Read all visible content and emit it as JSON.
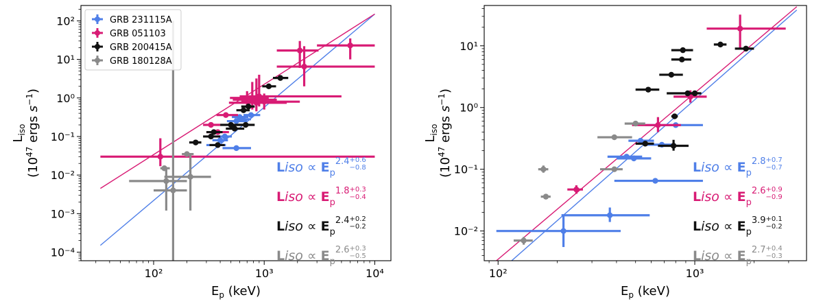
{
  "chart_data": [
    {
      "type": "scatter",
      "xlabel": "E_p (keV)",
      "ylabel_line1": "L_iso",
      "ylabel_line2": "(10^47 ergs s^-1)",
      "xscale": "log",
      "yscale": "log",
      "xlim": [
        22,
        14000
      ],
      "ylim": [
        6e-05,
        250
      ],
      "xticks": [
        100,
        1000,
        10000
      ],
      "xtick_labels": [
        "10²",
        "10³",
        "10⁴"
      ],
      "yticks": [
        0.0001,
        0.001,
        0.01,
        0.1,
        1,
        10,
        100
      ],
      "ytick_labels": [
        "10⁻⁴",
        "10⁻³",
        "10⁻²",
        "10⁻¹",
        "10⁰",
        "10¹",
        "10²"
      ],
      "legend_position": "top-left",
      "fit_lines": [
        {
          "series": "GRB 231115A",
          "x": [
            33,
            10000
          ],
          "y": [
            0.00015,
            150
          ]
        },
        {
          "series": "GRB 051103",
          "x": [
            33,
            10000
          ],
          "y": [
            0.0045,
            150
          ]
        }
      ],
      "series": [
        {
          "name": "GRB 231115A",
          "color": "#4f7fe8",
          "points": [
            {
              "x": 380,
              "y": 0.06,
              "xlo": 300,
              "xhi": 450
            },
            {
              "x": 400,
              "y": 0.08,
              "xlo": 340,
              "xhi": 470
            },
            {
              "x": 440,
              "y": 0.1,
              "xlo": 380,
              "xhi": 510
            },
            {
              "x": 560,
              "y": 0.05,
              "xlo": 420,
              "xhi": 760
            },
            {
              "x": 560,
              "y": 0.25,
              "xlo": 460,
              "xhi": 700
            },
            {
              "x": 600,
              "y": 0.32,
              "xlo": 510,
              "xhi": 720
            },
            {
              "x": 640,
              "y": 0.28,
              "xlo": 540,
              "xhi": 760
            },
            {
              "x": 760,
              "y": 0.36,
              "xlo": 650,
              "xhi": 920
            }
          ]
        },
        {
          "name": "GRB 051103",
          "color": "#d81b74",
          "points": [
            {
              "x": 115,
              "y": 0.03,
              "xlo": 33,
              "xhi": 10000,
              "ylo": 0.017,
              "yhi": 0.09
            },
            {
              "x": 330,
              "y": 0.2,
              "xlo": 280,
              "xhi": 400
            },
            {
              "x": 380,
              "y": 0.13,
              "xlo": 300,
              "xhi": 480
            },
            {
              "x": 450,
              "y": 0.36,
              "xlo": 370,
              "xhi": 580
            },
            {
              "x": 700,
              "y": 1.0,
              "xlo": 490,
              "xhi": 1100,
              "ylo": 0.6,
              "yhi": 1.5
            },
            {
              "x": 780,
              "y": 0.9,
              "xlo": 520,
              "xhi": 1300,
              "ylo": 0.5,
              "yhi": 2.6
            },
            {
              "x": 850,
              "y": 0.75,
              "xlo": 480,
              "xhi": 1600,
              "ylo": 0.45,
              "yhi": 3.2
            },
            {
              "x": 900,
              "y": 1.1,
              "xlo": 600,
              "xhi": 5000,
              "ylo": 0.6,
              "yhi": 4.0
            },
            {
              "x": 1000,
              "y": 0.8,
              "xlo": 620,
              "xhi": 2100,
              "ylo": 0.5,
              "yhi": 1.3
            },
            {
              "x": 2100,
              "y": 17,
              "xlo": 1300,
              "xhi": 3100,
              "ylo": 6,
              "yhi": 30
            },
            {
              "x": 2300,
              "y": 6.5,
              "xlo": 1300,
              "xhi": 10000,
              "ylo": 2,
              "yhi": 22
            },
            {
              "x": 6000,
              "y": 23,
              "xlo": 3000,
              "xhi": 10000,
              "ylo": 10,
              "yhi": 35
            }
          ]
        },
        {
          "name": "GRB 200415A",
          "color": "#111111",
          "points": [
            {
              "x": 240,
              "y": 0.07,
              "xlo": 210,
              "xhi": 270
            },
            {
              "x": 330,
              "y": 0.1,
              "xlo": 280,
              "xhi": 400
            },
            {
              "x": 350,
              "y": 0.13,
              "xlo": 300,
              "xhi": 420
            },
            {
              "x": 380,
              "y": 0.06,
              "xlo": 320,
              "xhi": 440
            },
            {
              "x": 500,
              "y": 0.2,
              "xlo": 400,
              "xhi": 640
            },
            {
              "x": 540,
              "y": 0.16,
              "xlo": 450,
              "xhi": 660
            },
            {
              "x": 650,
              "y": 0.48,
              "xlo": 560,
              "xhi": 740
            },
            {
              "x": 680,
              "y": 0.2,
              "xlo": 560,
              "xhi": 820
            },
            {
              "x": 720,
              "y": 0.6,
              "xlo": 620,
              "xhi": 820
            },
            {
              "x": 1100,
              "y": 2.0,
              "xlo": 960,
              "xhi": 1280
            },
            {
              "x": 1400,
              "y": 3.3,
              "xlo": 1200,
              "xhi": 1650
            }
          ]
        },
        {
          "name": "GRB 180128A",
          "color": "#8a8a8a",
          "points": [
            {
              "x": 150,
              "y": 0.004,
              "xlo": 100,
              "xhi": 200,
              "ylo": 6e-05,
              "yhi": 100
            },
            {
              "x": 125,
              "y": 0.015,
              "xlo": 115,
              "xhi": 140
            },
            {
              "x": 130,
              "y": 0.007,
              "xlo": 60,
              "xhi": 200,
              "ylo": 0.0012,
              "yhi": 0.015
            },
            {
              "x": 200,
              "y": 0.035,
              "xlo": 180,
              "xhi": 230
            },
            {
              "x": 215,
              "y": 0.009,
              "xlo": 125,
              "xhi": 330,
              "ylo": 0.0012,
              "yhi": 0.035
            }
          ]
        }
      ],
      "annotations": [
        {
          "series": "GRB 231115A",
          "lhs": "Liso",
          "sym": "∝",
          "base": "E",
          "sub": "p",
          "exp": "2.4",
          "plus": "+0.6",
          "minus": "−0.8",
          "color": "#4f7fe8"
        },
        {
          "series": "GRB 051103",
          "lhs": "Liso",
          "sym": "∝",
          "base": "E",
          "sub": "p",
          "exp": "1.8",
          "plus": "+0.3",
          "minus": "−0.4",
          "color": "#d81b74"
        },
        {
          "series": "GRB 200415A",
          "lhs": "Liso",
          "sym": "∝",
          "base": "E",
          "sub": "p",
          "exp": "2.4",
          "plus": "+0.2",
          "minus": "−0.2",
          "color": "#111111"
        },
        {
          "series": "GRB 180128A",
          "lhs": "Liso",
          "sym": "∝",
          "base": "E",
          "sub": "p",
          "exp": "2.6",
          "plus": "+0.3",
          "minus": "−0.5",
          "color": "#8a8a8a"
        }
      ]
    },
    {
      "type": "scatter",
      "xlabel": "E_p (keV)",
      "ylabel_line1": "L_iso",
      "ylabel_line2": "(10^47 ergs s^-1)",
      "xscale": "log",
      "yscale": "log",
      "xlim": [
        85,
        3700
      ],
      "ylim": [
        0.0033,
        45
      ],
      "xticks": [
        100,
        1000
      ],
      "xtick_labels": [
        "10²",
        "10³"
      ],
      "yticks": [
        0.01,
        0.1,
        1,
        10
      ],
      "ytick_labels": [
        "10⁻²",
        "10⁻¹",
        "10⁰",
        "10¹"
      ],
      "fit_lines": [
        {
          "series": "GRB 231115A",
          "x": [
            98,
            3300
          ],
          "y": [
            0.002,
            38
          ]
        },
        {
          "series": "GRB 051103",
          "x": [
            98,
            3300
          ],
          "y": [
            0.0033,
            43
          ]
        }
      ],
      "series": [
        {
          "name": "GRB 231115A",
          "color": "#4f7fe8",
          "points": [
            {
              "x": 215,
              "y": 0.01,
              "xlo": 98,
              "xhi": 420,
              "ylo": 0.0055,
              "yhi": 0.018
            },
            {
              "x": 370,
              "y": 0.018,
              "xlo": 210,
              "xhi": 590,
              "ylo": 0.014,
              "yhi": 0.024
            },
            {
              "x": 450,
              "y": 0.16,
              "xlo": 360,
              "xhi": 540
            },
            {
              "x": 490,
              "y": 0.15,
              "xlo": 400,
              "xhi": 600
            },
            {
              "x": 530,
              "y": 0.29,
              "xlo": 460,
              "xhi": 620
            },
            {
              "x": 630,
              "y": 0.065,
              "xlo": 390,
              "xhi": 1100
            },
            {
              "x": 680,
              "y": 0.25,
              "xlo": 560,
              "xhi": 800
            },
            {
              "x": 800,
              "y": 0.52,
              "xlo": 560,
              "xhi": 1100
            }
          ]
        },
        {
          "name": "GRB 051103",
          "color": "#d81b74",
          "points": [
            {
              "x": 250,
              "y": 0.047,
              "xlo": 225,
              "xhi": 270,
              "ylo": 0.04,
              "yhi": 0.055
            },
            {
              "x": 650,
              "y": 0.52,
              "xlo": 480,
              "xhi": 850,
              "ylo": 0.4,
              "yhi": 0.7
            },
            {
              "x": 950,
              "y": 1.5,
              "xlo": 780,
              "xhi": 1150,
              "ylo": 1.2,
              "yhi": 1.9
            },
            {
              "x": 1700,
              "y": 19,
              "xlo": 1150,
              "xhi": 2900,
              "ylo": 9,
              "yhi": 32
            }
          ]
        },
        {
          "name": "GRB 200415A",
          "color": "#111111",
          "points": [
            {
              "x": 560,
              "y": 0.26,
              "xlo": 500,
              "xhi": 620
            },
            {
              "x": 580,
              "y": 1.95,
              "xlo": 500,
              "xhi": 660
            },
            {
              "x": 760,
              "y": 3.4,
              "xlo": 660,
              "xhi": 870
            },
            {
              "x": 780,
              "y": 0.24,
              "xlo": 650,
              "xhi": 930,
              "ylo": 0.2,
              "yhi": 0.3
            },
            {
              "x": 790,
              "y": 0.72,
              "xlo": 760,
              "xhi": 820
            },
            {
              "x": 860,
              "y": 6.0,
              "xlo": 760,
              "xhi": 960
            },
            {
              "x": 870,
              "y": 8.5,
              "xlo": 760,
              "xhi": 980
            },
            {
              "x": 920,
              "y": 1.7,
              "xlo": 720,
              "xhi": 1050
            },
            {
              "x": 1000,
              "y": 1.7,
              "xlo": 920,
              "xhi": 1080
            },
            {
              "x": 1350,
              "y": 10.5,
              "xlo": 1250,
              "xhi": 1450
            },
            {
              "x": 1820,
              "y": 9.0,
              "xlo": 1600,
              "xhi": 2000
            }
          ]
        },
        {
          "name": "GRB 180128A",
          "color": "#8a8a8a",
          "points": [
            {
              "x": 135,
              "y": 0.007,
              "xlo": 120,
              "xhi": 150,
              "ylo": 0.006,
              "yhi": 0.008
            },
            {
              "x": 170,
              "y": 0.1,
              "xlo": 160,
              "xhi": 180,
              "ylo": 0.088,
              "yhi": 0.115
            },
            {
              "x": 175,
              "y": 0.036,
              "xlo": 165,
              "xhi": 185
            },
            {
              "x": 390,
              "y": 0.33,
              "xlo": 320,
              "xhi": 480
            },
            {
              "x": 390,
              "y": 0.1,
              "xlo": 330,
              "xhi": 430
            },
            {
              "x": 500,
              "y": 0.55,
              "xlo": 440,
              "xhi": 560
            }
          ]
        }
      ],
      "annotations": [
        {
          "series": "GRB 231115A",
          "lhs": "Liso",
          "sym": "∝",
          "base": "E",
          "sub": "p",
          "exp": "2.8",
          "plus": "+0.7",
          "minus": "−0.7",
          "color": "#4f7fe8"
        },
        {
          "series": "GRB 051103",
          "lhs": "Liso",
          "sym": "∝",
          "base": "E",
          "sub": "p",
          "exp": "2.6",
          "plus": "+0.9",
          "minus": "−0.9",
          "color": "#d81b74"
        },
        {
          "series": "GRB 200415A",
          "lhs": "Liso",
          "sym": "∝",
          "base": "E",
          "sub": "p",
          "exp": "3.9",
          "plus": "+0.1",
          "minus": "−0.2",
          "color": "#111111"
        },
        {
          "series": "GRB 180128A",
          "lhs": "Liso",
          "sym": "∝",
          "base": "E",
          "sub": "p",
          "exp": "2.7",
          "plus": "+0.4",
          "minus": "−0.3",
          "color": "#8a8a8a"
        }
      ]
    }
  ]
}
